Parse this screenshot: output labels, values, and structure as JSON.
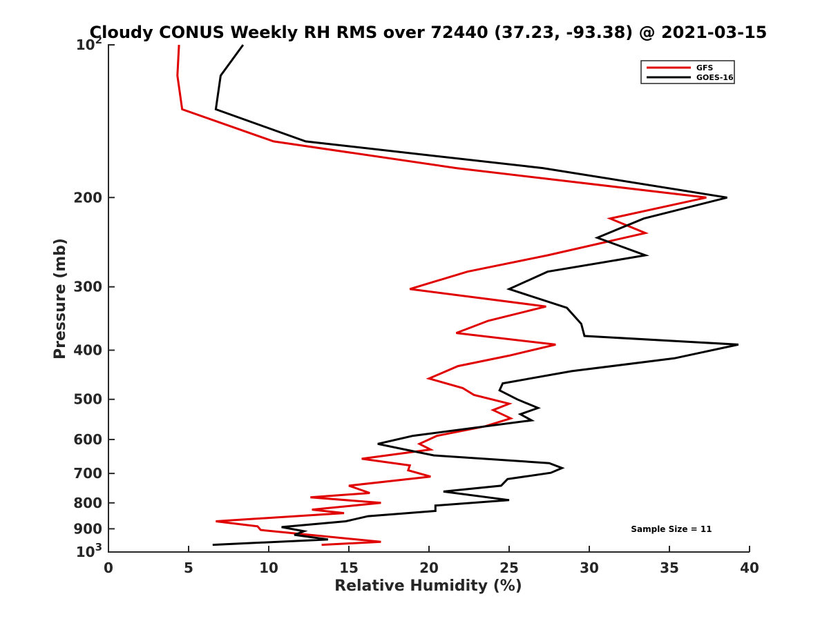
{
  "chart_data": {
    "type": "line",
    "title": "Cloudy CONUS Weekly RH RMS over 72440 (37.23, -93.38) @ 2021-03-15",
    "xlabel": "Relative Humidity (%)",
    "ylabel": "Pressure (mb)",
    "xlim": [
      0,
      40
    ],
    "ylim": [
      100,
      1000
    ],
    "y_scale": "log",
    "y_reversed": true,
    "x_ticks": [
      "0",
      "5",
      "10",
      "15",
      "20",
      "25",
      "30",
      "35",
      "40"
    ],
    "y_ticks": [
      {
        "value": 100,
        "base": "10",
        "exp": "2"
      },
      {
        "value": 200,
        "label": "200"
      },
      {
        "value": 300,
        "label": "300"
      },
      {
        "value": 400,
        "label": "400"
      },
      {
        "value": 500,
        "label": "500"
      },
      {
        "value": 600,
        "label": "600"
      },
      {
        "value": 700,
        "label": "700"
      },
      {
        "value": 800,
        "label": "800"
      },
      {
        "value": 900,
        "label": "900"
      },
      {
        "value": 1000,
        "base": "10",
        "exp": "3"
      }
    ],
    "legend_position": "top-right",
    "annotation": "Sample Size = 11",
    "series": [
      {
        "name": "GFS",
        "color": "#e00000",
        "points": [
          [
            4.4,
            100
          ],
          [
            4.3,
            115
          ],
          [
            4.6,
            134
          ],
          [
            10.3,
            155
          ],
          [
            21.7,
            175
          ],
          [
            37.3,
            200
          ],
          [
            31.3,
            220
          ],
          [
            33.5,
            235
          ],
          [
            27.4,
            260
          ],
          [
            22.4,
            280
          ],
          [
            18.8,
            303
          ],
          [
            27.3,
            328
          ],
          [
            23.7,
            350
          ],
          [
            21.7,
            370
          ],
          [
            27.9,
            390
          ],
          [
            25,
            410
          ],
          [
            21.8,
            430
          ],
          [
            20,
            455
          ],
          [
            22.1,
            475
          ],
          [
            22.8,
            490
          ],
          [
            25,
            510
          ],
          [
            24,
            525
          ],
          [
            25.1,
            545
          ],
          [
            23.5,
            565
          ],
          [
            20.5,
            590
          ],
          [
            19.4,
            612
          ],
          [
            20.1,
            628
          ],
          [
            15.8,
            655
          ],
          [
            18.8,
            675
          ],
          [
            18.7,
            690
          ],
          [
            20.1,
            710
          ],
          [
            15,
            740
          ],
          [
            16.3,
            765
          ],
          [
            12.6,
            780
          ],
          [
            17,
            800
          ],
          [
            12.7,
            825
          ],
          [
            14.7,
            838
          ],
          [
            6.7,
            870
          ],
          [
            9.3,
            890
          ],
          [
            9.5,
            905
          ],
          [
            17,
            955
          ],
          [
            13.3,
            968
          ]
        ]
      },
      {
        "name": "GOES-16",
        "color": "#000000",
        "points": [
          [
            8.4,
            100
          ],
          [
            7,
            115
          ],
          [
            6.7,
            134
          ],
          [
            12.3,
            155
          ],
          [
            27.1,
            175
          ],
          [
            38.6,
            200
          ],
          [
            33.4,
            220
          ],
          [
            30.5,
            240
          ],
          [
            33.5,
            260
          ],
          [
            27.4,
            280
          ],
          [
            25,
            303
          ],
          [
            28.6,
            330
          ],
          [
            29.5,
            355
          ],
          [
            29.7,
            375
          ],
          [
            39.3,
            390
          ],
          [
            35.3,
            415
          ],
          [
            28.9,
            440
          ],
          [
            24.6,
            465
          ],
          [
            24.4,
            480
          ],
          [
            25.5,
            500
          ],
          [
            26.8,
            520
          ],
          [
            25.7,
            535
          ],
          [
            26.4,
            550
          ],
          [
            19,
            590
          ],
          [
            16.8,
            612
          ],
          [
            18.5,
            628
          ],
          [
            20.3,
            645
          ],
          [
            27.5,
            668
          ],
          [
            28.3,
            683
          ],
          [
            27.6,
            698
          ],
          [
            24.9,
            718
          ],
          [
            24.5,
            740
          ],
          [
            20.9,
            760
          ],
          [
            25,
            790
          ],
          [
            20.4,
            810
          ],
          [
            20.4,
            830
          ],
          [
            16.2,
            850
          ],
          [
            14.8,
            870
          ],
          [
            10.8,
            893
          ],
          [
            12.2,
            910
          ],
          [
            11.6,
            925
          ],
          [
            13.7,
            945
          ],
          [
            6.5,
            968
          ]
        ]
      }
    ]
  }
}
